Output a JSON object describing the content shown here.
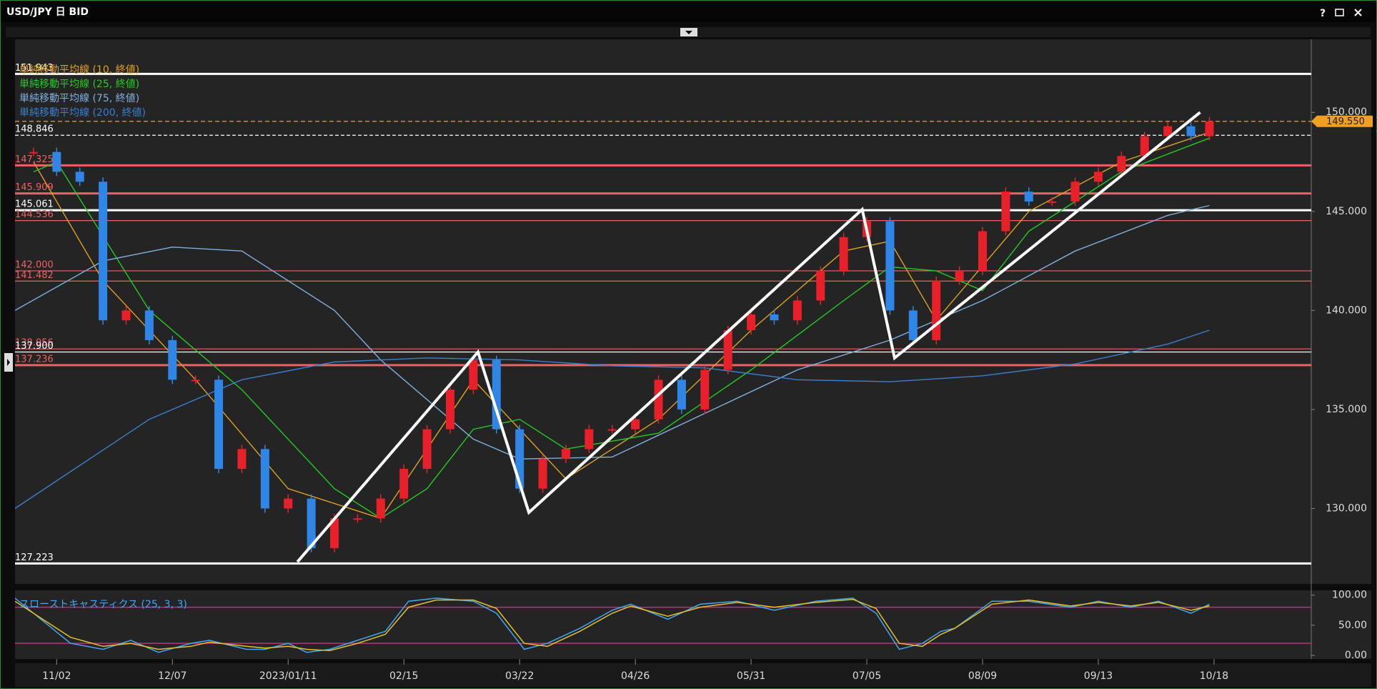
{
  "window": {
    "title": "USD/JPY 日 BID",
    "help": "?"
  },
  "chart_data": [
    {
      "type": "candlestick",
      "x": [
        -5,
        0,
        5,
        10,
        15,
        20,
        25,
        30,
        35,
        40,
        45,
        50,
        55,
        60,
        65,
        70,
        75,
        80,
        85,
        90,
        95,
        100,
        105,
        110,
        115,
        120,
        125,
        130,
        135,
        140,
        145,
        150,
        155,
        160,
        165,
        170,
        175,
        180,
        185,
        190,
        195,
        200,
        205,
        210,
        215,
        220,
        225,
        230,
        235,
        240,
        245,
        249
      ],
      "values": [
        148,
        147,
        146.5,
        139.5,
        140,
        138.5,
        136.5,
        136.5,
        132,
        133,
        130,
        130.5,
        128,
        129.5,
        129.5,
        130.5,
        132,
        134,
        136,
        137.5,
        134,
        131,
        132.5,
        133,
        134,
        134,
        134.5,
        136.5,
        135,
        137,
        139,
        139.8,
        139.5,
        140.5,
        142,
        143.7,
        144.5,
        140,
        138.5,
        141.5,
        142,
        144,
        146,
        145.5,
        145.5,
        146.5,
        147,
        147.8,
        148.8,
        149.3,
        148.8,
        149.55
      ],
      "up_color": "#e8202a",
      "down_color": "#2f86e6",
      "xlim": [
        -9,
        271
      ],
      "xticks": [
        {
          "value": 0,
          "label": "11/02"
        },
        {
          "value": 25,
          "label": "12/07"
        },
        {
          "value": 50,
          "label": "2023/01/11"
        },
        {
          "value": 75,
          "label": "02/15"
        },
        {
          "value": 100,
          "label": "03/22"
        },
        {
          "value": 125,
          "label": "04/26"
        },
        {
          "value": 150,
          "label": "05/31"
        },
        {
          "value": 175,
          "label": "07/05"
        },
        {
          "value": 200,
          "label": "08/09"
        },
        {
          "value": 225,
          "label": "09/13"
        },
        {
          "value": 250,
          "label": "10/18"
        }
      ],
      "ylim": [
        126.19,
        153.69
      ],
      "yticks": [
        {
          "value": 130,
          "label": "130.000"
        },
        {
          "value": 135,
          "label": "135.000"
        },
        {
          "value": 140,
          "label": "140.000"
        },
        {
          "value": 145,
          "label": "145.000"
        },
        {
          "value": 150,
          "label": "150.000"
        }
      ],
      "series": [
        {
          "name": "単純移動平均線 (10, 終値)",
          "color": "#e0a020",
          "x": [
            -5,
            10,
            30,
            50,
            70,
            90,
            110,
            130,
            150,
            170,
            180,
            190,
            210,
            230,
            249
          ],
          "values": [
            147.5,
            141.5,
            136.5,
            131,
            129.5,
            136.5,
            131.5,
            134.5,
            139,
            143,
            143.5,
            139.5,
            145,
            147.5,
            149
          ]
        },
        {
          "name": "単純移動平均線 (25, 終値)",
          "color": "#22cc22",
          "x": [
            -5,
            0,
            20,
            40,
            60,
            70,
            80,
            90,
            100,
            110,
            130,
            150,
            170,
            180,
            190,
            200,
            210,
            230,
            249
          ],
          "values": [
            147,
            147.5,
            140,
            136,
            131,
            129.5,
            131,
            134,
            134.5,
            133,
            133.8,
            137,
            140.5,
            142.2,
            142,
            141,
            144,
            147,
            148.7
          ]
        },
        {
          "name": "単純移動平均線 (75, 終値)",
          "color": "#7fb0e0",
          "x": [
            -9,
            10,
            25,
            40,
            60,
            70,
            90,
            100,
            120,
            140,
            160,
            180,
            200,
            220,
            240,
            249
          ],
          "values": [
            140,
            142.5,
            143.2,
            143,
            140,
            137.5,
            133.5,
            132.5,
            132.6,
            134.8,
            137,
            138.5,
            140.5,
            143,
            144.8,
            145.3
          ]
        },
        {
          "name": "単純移動平均線 (200, 終値)",
          "color": "#3a7fd0",
          "x": [
            -9,
            20,
            40,
            60,
            80,
            100,
            120,
            140,
            160,
            180,
            200,
            220,
            240,
            249
          ],
          "values": [
            130,
            134.5,
            136.5,
            137.4,
            137.6,
            137.5,
            137.2,
            137.1,
            136.5,
            136.4,
            136.7,
            137.3,
            138.3,
            139
          ]
        }
      ],
      "levels": [
        {
          "value": 151.943,
          "label": "151.943",
          "color": "#ffffff",
          "style": "thick"
        },
        {
          "value": 148.846,
          "label": "148.846",
          "color": "#ffffff",
          "style": "dashed"
        },
        {
          "value": 147.325,
          "label": "147.325",
          "color": "#f06060",
          "style": "thick"
        },
        {
          "value": 145.909,
          "label": "145.909",
          "color": "#f06060",
          "style": "thick"
        },
        {
          "value": 145.061,
          "label": "145.061",
          "color": "#ffffff",
          "style": "thick"
        },
        {
          "value": 144.536,
          "label": "144.536",
          "color": "#f06060",
          "style": "thin"
        },
        {
          "value": 142,
          "label": "142.000",
          "color": "#f06060",
          "style": "thin"
        },
        {
          "value": 141.482,
          "label": "141.482",
          "color": "#f06060",
          "style": "thin"
        },
        {
          "value": 138.056,
          "label": "138.056",
          "color": "#f06060",
          "style": "thin"
        },
        {
          "value": 137.9,
          "label": "137.900",
          "color": "#ffffff",
          "style": "thin"
        },
        {
          "value": 137.236,
          "label": "137.236",
          "color": "#f06060",
          "style": "thick"
        },
        {
          "value": 127.223,
          "label": "127.223",
          "color": "#ffffff",
          "style": "thick"
        }
      ],
      "last_price": {
        "value": 149.55,
        "label": "149.550",
        "color": "#f0a020"
      },
      "zigzag": {
        "x": [
          52,
          91,
          102,
          174,
          181,
          247
        ],
        "values": [
          127.3,
          137.9,
          129.8,
          145.1,
          137.6,
          150
        ],
        "color": "#ffffff"
      }
    },
    {
      "type": "line",
      "title": "スローストキャスティクス (25, 3, 3)",
      "x": [
        -9,
        3,
        10,
        16,
        22,
        29,
        33,
        41,
        45,
        50,
        54,
        59,
        65,
        71,
        76,
        82,
        90,
        95,
        101,
        106,
        113,
        120,
        124,
        132,
        139,
        147,
        155,
        164,
        172,
        177,
        182,
        187,
        191,
        194,
        202,
        210,
        219,
        225,
        232,
        238,
        245,
        249
      ],
      "series": [
        {
          "color": "#3fa9f5",
          "values": [
            95,
            20,
            10,
            25,
            5,
            20,
            25,
            10,
            10,
            20,
            5,
            10,
            25,
            40,
            90,
            95,
            90,
            70,
            10,
            20,
            45,
            75,
            85,
            60,
            85,
            90,
            75,
            90,
            95,
            70,
            10,
            20,
            40,
            45,
            90,
            90,
            80,
            90,
            80,
            90,
            70,
            85
          ]
        },
        {
          "color": "#e8c020",
          "values": [
            90,
            30,
            15,
            20,
            10,
            15,
            22,
            15,
            12,
            15,
            10,
            8,
            20,
            35,
            80,
            92,
            92,
            78,
            20,
            15,
            40,
            70,
            82,
            65,
            80,
            88,
            80,
            88,
            93,
            78,
            20,
            15,
            35,
            45,
            85,
            92,
            82,
            88,
            82,
            88,
            75,
            82
          ]
        }
      ],
      "ylim": [
        -6,
        108
      ],
      "yticks": [
        {
          "value": 0,
          "label": "0.00"
        },
        {
          "value": 50,
          "label": "50.00"
        },
        {
          "value": 100,
          "label": "100.00"
        }
      ],
      "levels": [
        80,
        20
      ],
      "level_color": "#c0307a"
    }
  ]
}
